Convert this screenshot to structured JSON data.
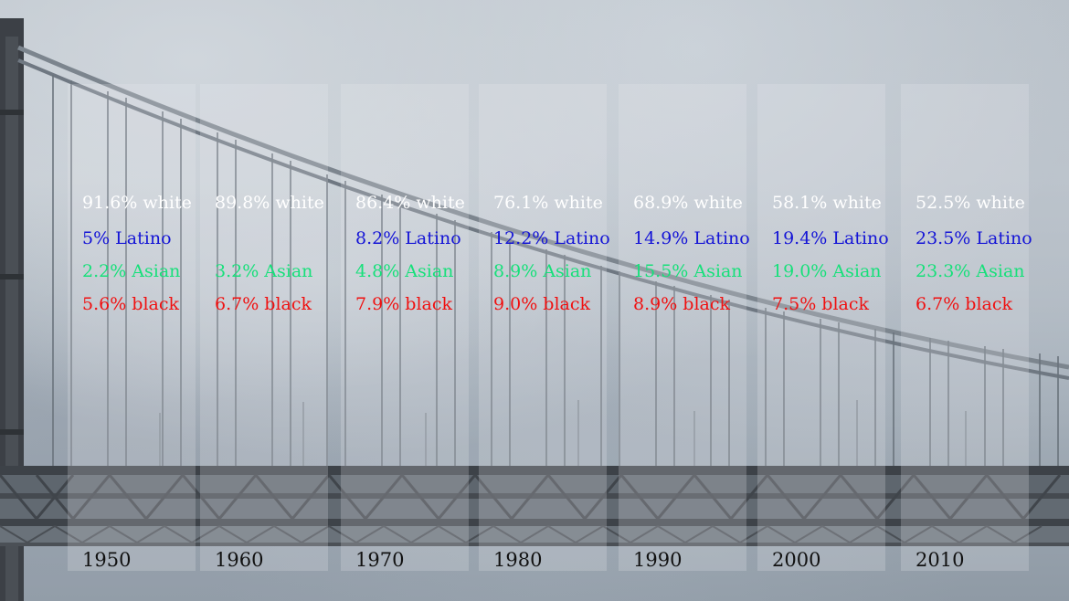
{
  "columns": [
    {
      "year": "1950",
      "white": "91.6% white",
      "latino": "5% Latino",
      "asian": "2.2% Asian",
      "black": "5.6% black"
    },
    {
      "year": "1960",
      "white": "89.8% white",
      "latino": "",
      "asian": "3.2% Asian",
      "black": "6.7% black"
    },
    {
      "year": "1970",
      "white": "86.4% white",
      "latino": "8.2% Latino",
      "asian": "4.8% Asian",
      "black": "7.9% black"
    },
    {
      "year": "1980",
      "white": "76.1% white",
      "latino": "12.2% Latino",
      "asian": "8.9% Asian",
      "black": "9.0% black"
    },
    {
      "year": "1990",
      "white": "68.9% white",
      "latino": "14.9% Latino",
      "asian": "15.5% Asian",
      "black": "8.9% black"
    },
    {
      "year": "2000",
      "white": "58.1% white",
      "latino": "19.4% Latino",
      "asian": "19.0% Asian",
      "black": "7.5% black"
    },
    {
      "year": "2010",
      "white": "52.5% white",
      "latino": "23.5% Latino",
      "asian": "23.3% Asian",
      "black": "6.7% black"
    }
  ],
  "colors": {
    "white": "#ffffff",
    "latino": "#1414d6",
    "asian": "#16e07a",
    "black": "#f01010",
    "year": "#111111"
  }
}
